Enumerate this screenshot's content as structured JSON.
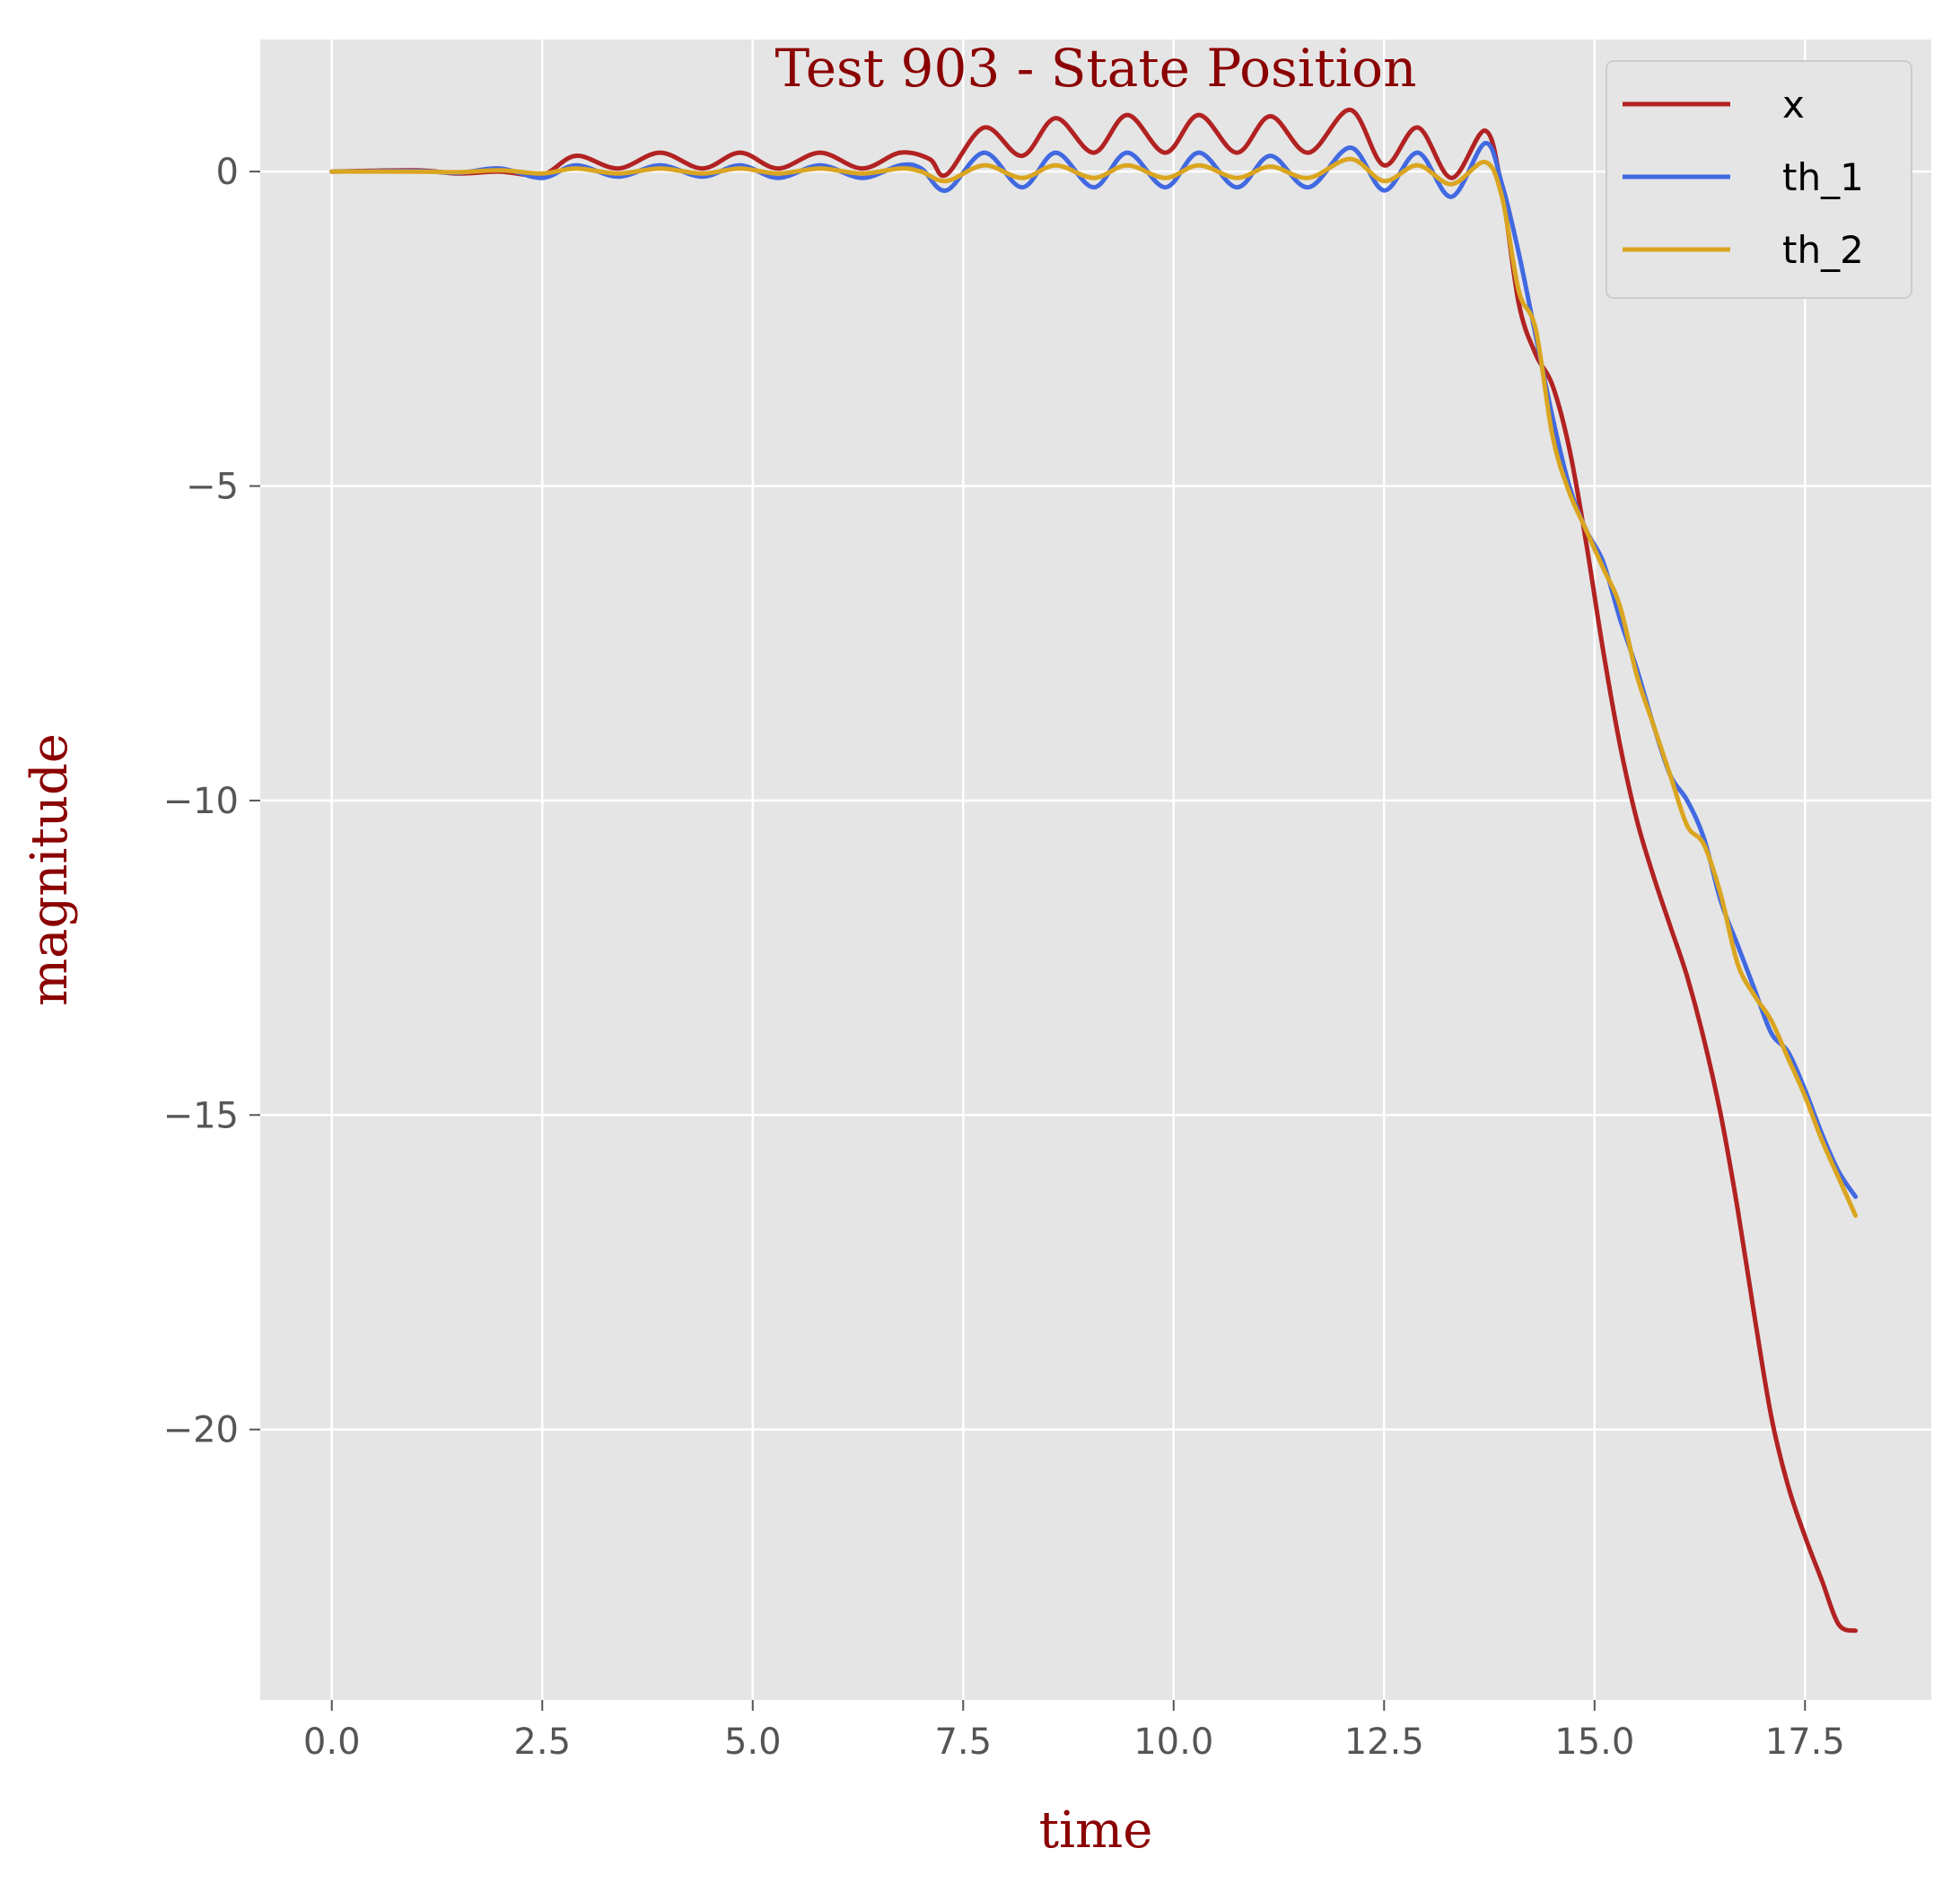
{
  "chart_data": {
    "type": "line",
    "title": "Test 903 - State Position",
    "xlabel": "time",
    "ylabel": "magnitude",
    "xlim": [
      -0.85,
      19.0
    ],
    "ylim": [
      -24.3,
      2.1
    ],
    "xticks": [
      0.0,
      2.5,
      5.0,
      7.5,
      10.0,
      12.5,
      15.0,
      17.5
    ],
    "xtick_labels": [
      "0.0",
      "2.5",
      "5.0",
      "7.5",
      "10.0",
      "12.5",
      "15.0",
      "17.5"
    ],
    "yticks": [
      0,
      -5,
      -10,
      -15,
      -20
    ],
    "ytick_labels": [
      "0",
      "−5",
      "−10",
      "−15",
      "−20"
    ],
    "grid": true,
    "legend_position": "top-right",
    "series": [
      {
        "name": "x",
        "color": "#b22222",
        "x": [
          0.0,
          1.0,
          1.5,
          2.0,
          2.5,
          2.9,
          3.4,
          3.9,
          4.4,
          4.85,
          5.3,
          5.8,
          6.3,
          6.75,
          7.1,
          7.3,
          7.75,
          8.2,
          8.6,
          9.05,
          9.45,
          9.9,
          10.3,
          10.75,
          11.15,
          11.6,
          12.1,
          12.5,
          12.9,
          13.3,
          13.7,
          13.9,
          14.1,
          14.3,
          14.5,
          14.7,
          14.9,
          15.1,
          15.3,
          15.5,
          15.7,
          15.9,
          16.1,
          16.3,
          16.5,
          16.7,
          16.9,
          17.1,
          17.3,
          17.5,
          17.7,
          17.9,
          18.1
        ],
        "y": [
          0.0,
          0.02,
          -0.03,
          0.0,
          -0.05,
          0.25,
          0.05,
          0.3,
          0.05,
          0.3,
          0.05,
          0.3,
          0.05,
          0.3,
          0.2,
          -0.05,
          0.7,
          0.25,
          0.85,
          0.3,
          0.9,
          0.3,
          0.9,
          0.3,
          0.88,
          0.3,
          0.98,
          0.1,
          0.7,
          -0.1,
          0.65,
          -0.3,
          -2.1,
          -2.9,
          -3.4,
          -4.4,
          -5.9,
          -7.6,
          -9.1,
          -10.3,
          -11.2,
          -12.0,
          -12.8,
          -13.8,
          -15.0,
          -16.5,
          -18.2,
          -19.8,
          -20.9,
          -21.7,
          -22.4,
          -23.1,
          -23.2
        ]
      },
      {
        "name": "th_1",
        "color": "#4169e1",
        "x": [
          0.0,
          1.0,
          1.5,
          2.0,
          2.5,
          2.9,
          3.4,
          3.9,
          4.4,
          4.85,
          5.3,
          5.8,
          6.3,
          6.75,
          7.0,
          7.3,
          7.75,
          8.2,
          8.6,
          9.05,
          9.45,
          9.9,
          10.3,
          10.75,
          11.15,
          11.6,
          12.1,
          12.5,
          12.9,
          13.3,
          13.7,
          13.9,
          14.1,
          14.3,
          14.5,
          14.7,
          14.9,
          15.1,
          15.3,
          15.5,
          15.7,
          15.9,
          16.1,
          16.3,
          16.5,
          16.7,
          16.9,
          17.1,
          17.3,
          17.5,
          17.7,
          17.9,
          18.1
        ],
        "y": [
          0.0,
          0.01,
          -0.02,
          0.05,
          -0.1,
          0.1,
          -0.08,
          0.1,
          -0.08,
          0.1,
          -0.1,
          0.1,
          -0.1,
          0.1,
          0.05,
          -0.3,
          0.3,
          -0.25,
          0.3,
          -0.25,
          0.3,
          -0.25,
          0.3,
          -0.25,
          0.25,
          -0.25,
          0.38,
          -0.3,
          0.3,
          -0.4,
          0.45,
          -0.2,
          -1.3,
          -2.6,
          -3.9,
          -5.0,
          -5.7,
          -6.2,
          -7.1,
          -7.9,
          -8.8,
          -9.6,
          -10.0,
          -10.6,
          -11.6,
          -12.3,
          -13.0,
          -13.7,
          -14.0,
          -14.6,
          -15.3,
          -15.9,
          -16.3
        ]
      },
      {
        "name": "th_2",
        "color": "#daa520",
        "x": [
          0.0,
          1.0,
          1.5,
          2.0,
          2.5,
          2.9,
          3.4,
          3.9,
          4.4,
          4.85,
          5.3,
          5.8,
          6.3,
          6.75,
          7.0,
          7.3,
          7.75,
          8.2,
          8.6,
          9.05,
          9.45,
          9.9,
          10.3,
          10.75,
          11.15,
          11.6,
          12.1,
          12.5,
          12.9,
          13.3,
          13.7,
          13.9,
          14.1,
          14.3,
          14.5,
          14.7,
          14.9,
          15.1,
          15.3,
          15.5,
          15.7,
          15.9,
          16.1,
          16.3,
          16.5,
          16.7,
          16.9,
          17.1,
          17.3,
          17.5,
          17.7,
          17.9,
          18.1
        ],
        "y": [
          0.0,
          0.0,
          -0.01,
          0.02,
          -0.03,
          0.05,
          -0.03,
          0.05,
          -0.03,
          0.05,
          -0.03,
          0.05,
          -0.03,
          0.05,
          0.0,
          -0.15,
          0.1,
          -0.1,
          0.1,
          -0.1,
          0.1,
          -0.1,
          0.1,
          -0.1,
          0.08,
          -0.1,
          0.2,
          -0.15,
          0.1,
          -0.2,
          0.15,
          -0.4,
          -1.9,
          -2.5,
          -4.2,
          -5.1,
          -5.7,
          -6.3,
          -6.9,
          -8.0,
          -8.8,
          -9.6,
          -10.4,
          -10.7,
          -11.5,
          -12.6,
          -13.1,
          -13.5,
          -14.1,
          -14.7,
          -15.4,
          -16.0,
          -16.6
        ]
      }
    ]
  }
}
